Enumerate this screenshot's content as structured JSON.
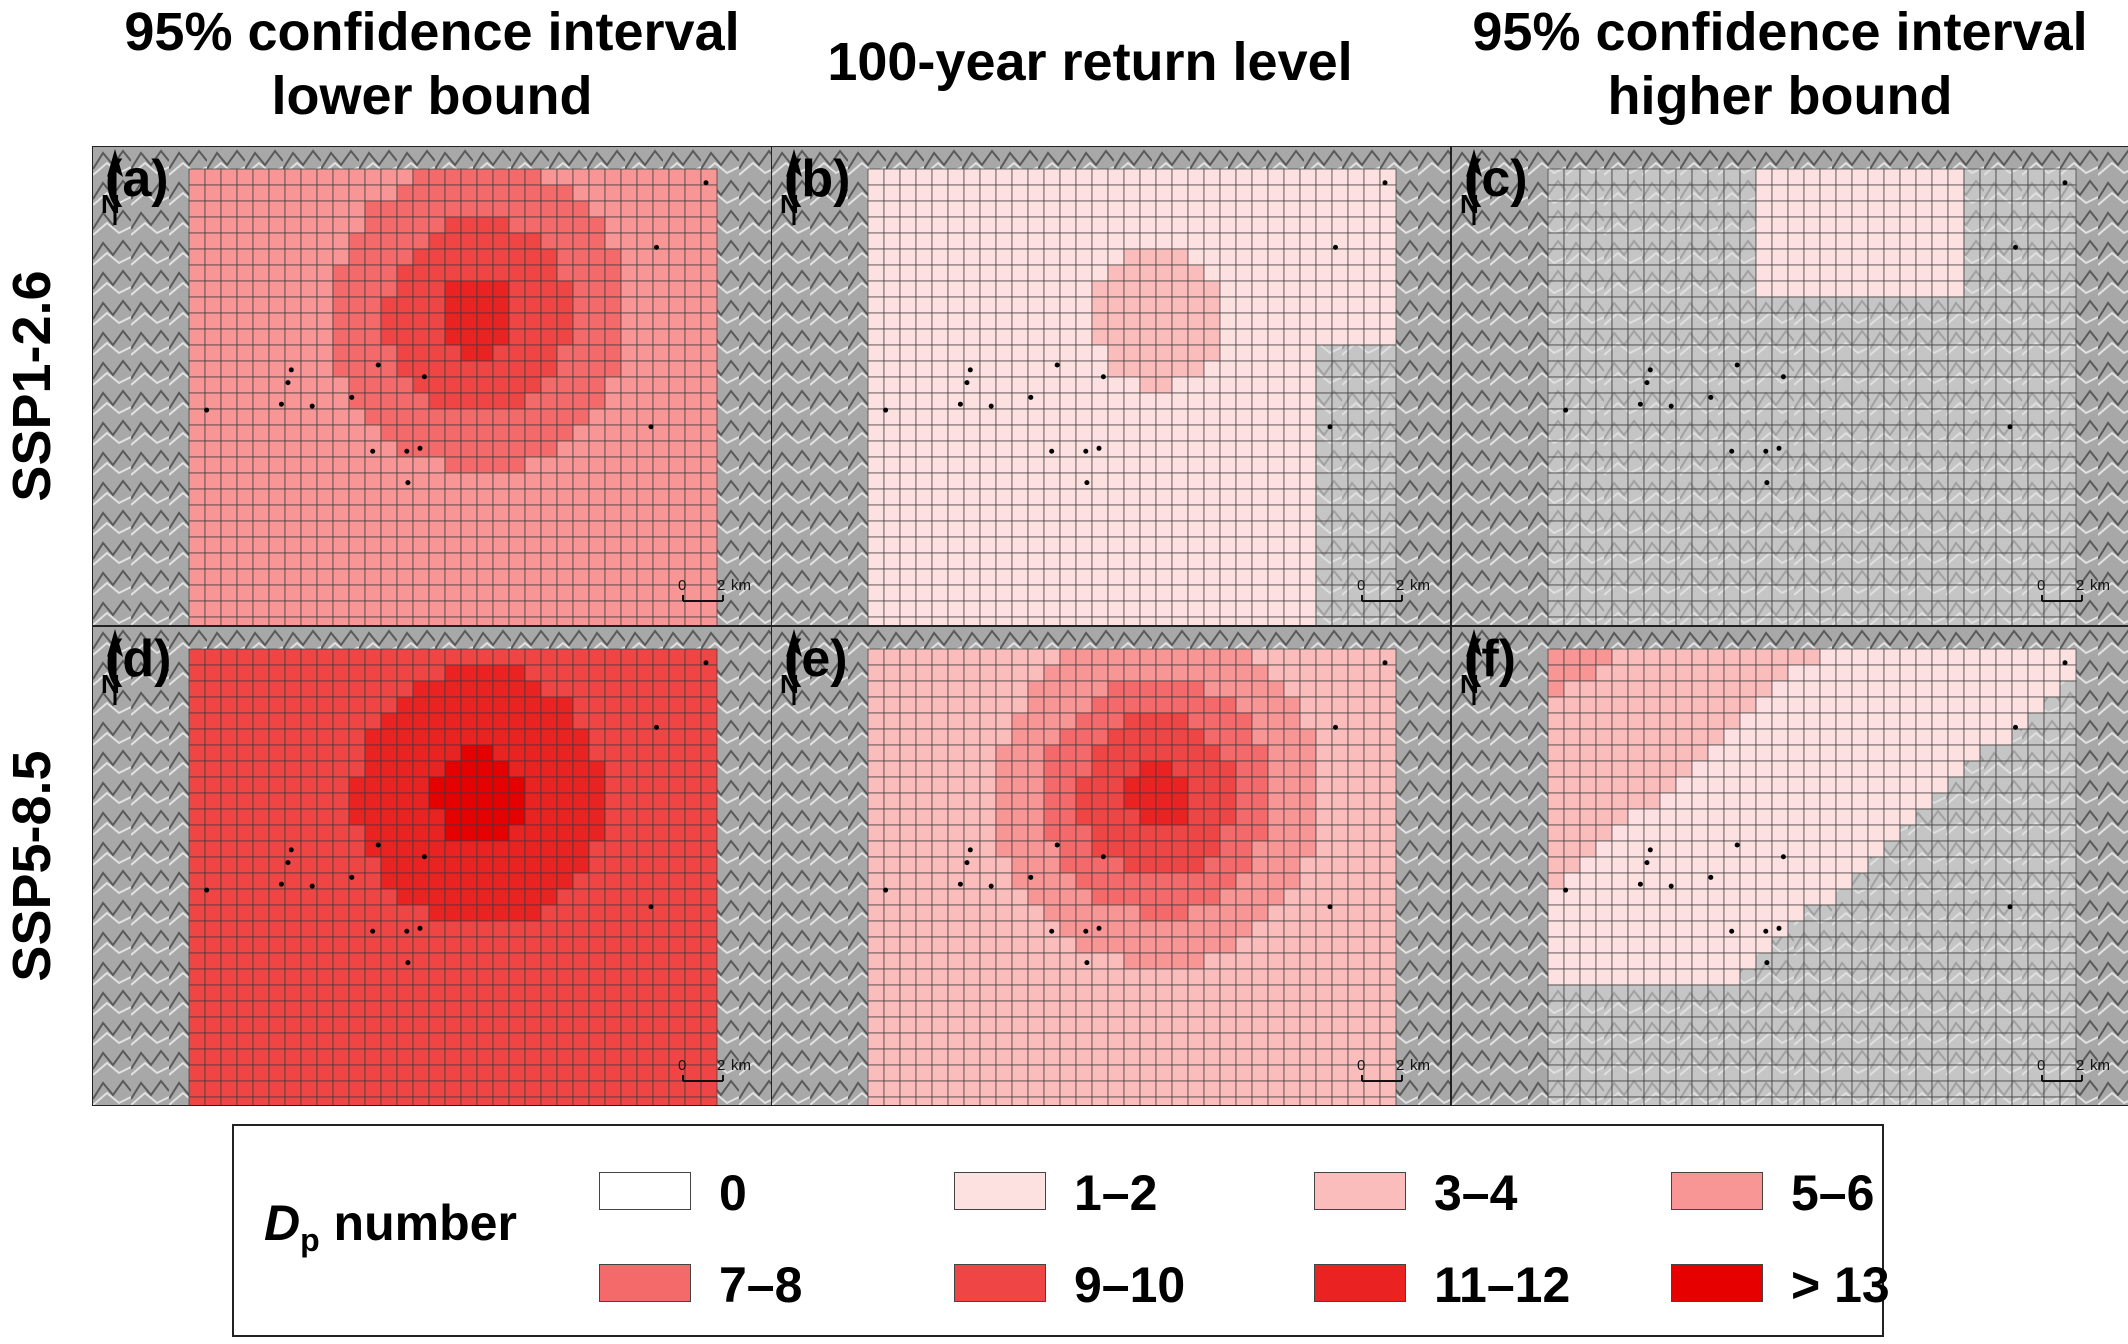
{
  "column_titles": [
    {
      "line1": "95% confidence interval",
      "line2": "lower bound"
    },
    {
      "line1": "100-year return level",
      "line2": ""
    },
    {
      "line1": "95% confidence interval",
      "line2": "higher bound"
    }
  ],
  "row_titles": [
    "SSP1-2.6",
    "SSP5-8.5"
  ],
  "panels": [
    {
      "label": "(a)",
      "scenario": "SSP1-2.6",
      "statistic": "lower",
      "coverage": "full",
      "level_base": 5,
      "level_hot": 11
    },
    {
      "label": "(b)",
      "scenario": "SSP1-2.6",
      "statistic": "return",
      "coverage": "partial-east-clear",
      "level_base": 1,
      "level_hot": 3
    },
    {
      "label": "(c)",
      "scenario": "SSP1-2.6",
      "statistic": "higher",
      "coverage": "sparse",
      "level_base": 0,
      "level_hot": 1
    },
    {
      "label": "(d)",
      "scenario": "SSP5-8.5",
      "statistic": "lower",
      "coverage": "full",
      "level_base": 9,
      "level_hot": 13
    },
    {
      "label": "(e)",
      "scenario": "SSP5-8.5",
      "statistic": "return",
      "coverage": "full",
      "level_base": 3,
      "level_hot": 11
    },
    {
      "label": "(f)",
      "scenario": "SSP5-8.5",
      "statistic": "higher",
      "coverage": "northwest-triangle",
      "level_base": 0,
      "level_hot": 5
    }
  ],
  "scale_bar": {
    "zero": "0",
    "value": "2",
    "unit": "km"
  },
  "north_label": "N",
  "legend": {
    "title_symbol": "D",
    "title_subscript": "p",
    "title_rest": " number",
    "items": [
      {
        "label": "0",
        "color": "#ffffff"
      },
      {
        "label": "1–2",
        "color": "#fde0e0"
      },
      {
        "label": "3–4",
        "color": "#fbbcbc"
      },
      {
        "label": "5–6",
        "color": "#f89595"
      },
      {
        "label": "7–8",
        "color": "#f46a6a"
      },
      {
        "label": "9–10",
        "color": "#ef4545"
      },
      {
        "label": "11–12",
        "color": "#ea2222"
      },
      {
        "label": "> 13",
        "color": "#e60000"
      }
    ]
  }
}
